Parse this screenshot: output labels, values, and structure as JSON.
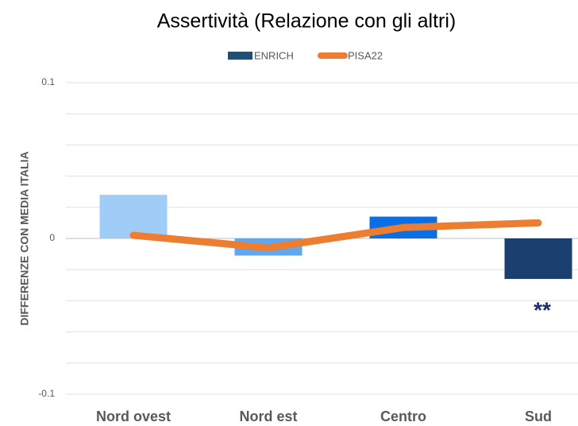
{
  "chart_data": {
    "type": "combo",
    "title": "Assertività (Relazione con gli altri)",
    "y_label": "DIFFERENZE CON MEDIA ITALIA",
    "categories": [
      "Nord ovest",
      "Nord est",
      "Centro",
      "Sud"
    ],
    "series": [
      {
        "name": "ENRICH",
        "type": "bar",
        "color": "#1f4e79",
        "colors": [
          "#9fcdf8",
          "#5fa8f0",
          "#0a6fe6",
          "#1b3f6e"
        ],
        "values": [
          0.028,
          -0.011,
          0.014,
          -0.026
        ]
      },
      {
        "name": "PISA22",
        "type": "line",
        "color": "#ed7d31",
        "values": [
          0.002,
          -0.006,
          0.007,
          0.01
        ]
      }
    ],
    "ylim": [
      -0.1,
      0.1
    ],
    "yticks": [
      -0.1,
      0,
      0.1
    ],
    "grid_yticks": [
      -0.1,
      -0.08,
      -0.06,
      -0.04,
      -0.02,
      0,
      0.02,
      0.04,
      0.06,
      0.08,
      0.1
    ],
    "grid": true,
    "legend": "top",
    "annotations": [
      {
        "text": "**",
        "category": 3
      }
    ]
  }
}
